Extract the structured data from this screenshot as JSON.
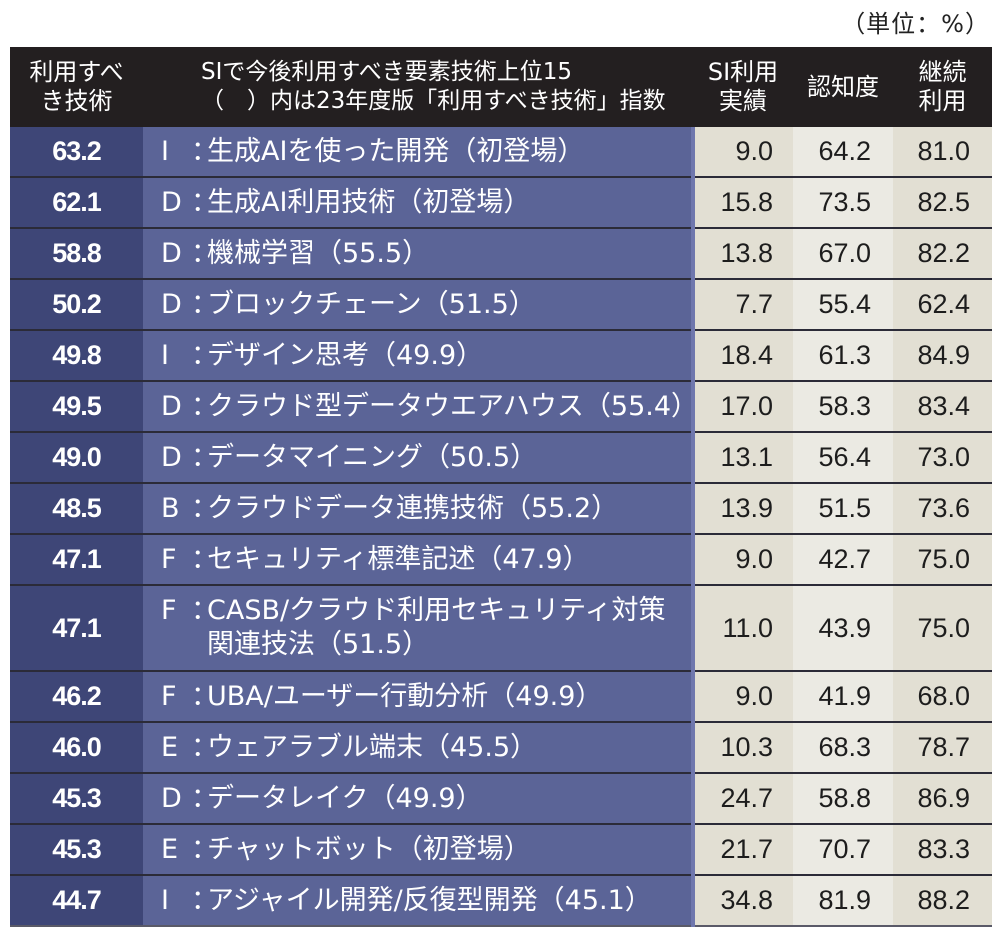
{
  "unit_label": "（単位：%）",
  "header": {
    "score_line1": "利用すべ",
    "score_line2": "き技術",
    "name_line1": "SIで今後利用すべき要素技術上位15",
    "name_line2": "（　）内は23年度版「利用すべき技術」指数",
    "si_line1": "SI利用",
    "si_line2": "実績",
    "recognition": "認知度",
    "continue_line1": "継続",
    "continue_line2": "利用"
  },
  "colors": {
    "header_bg": "#231f20",
    "score_bg": "#3e4677",
    "name_bg": "#5b6497",
    "num_bg_a": "#e2dfd3",
    "num_bg_b": "#ebeae3"
  },
  "rows": [
    {
      "score": "63.2",
      "cat": "I",
      "name": "生成AIを使った開発（初登場）",
      "si": "9.0",
      "recognition": "64.2",
      "continue": "81.0"
    },
    {
      "score": "62.1",
      "cat": "D",
      "name": "生成AI利用技術（初登場）",
      "si": "15.8",
      "recognition": "73.5",
      "continue": "82.5"
    },
    {
      "score": "58.8",
      "cat": "D",
      "name": "機械学習（55.5）",
      "si": "13.8",
      "recognition": "67.0",
      "continue": "82.2"
    },
    {
      "score": "50.2",
      "cat": "D",
      "name": "ブロックチェーン（51.5）",
      "si": "7.7",
      "recognition": "55.4",
      "continue": "62.4"
    },
    {
      "score": "49.8",
      "cat": "I",
      "name": "デザイン思考（49.9）",
      "si": "18.4",
      "recognition": "61.3",
      "continue": "84.9"
    },
    {
      "score": "49.5",
      "cat": "D",
      "name": "クラウド型データウエアハウス（55.4）",
      "si": "17.0",
      "recognition": "58.3",
      "continue": "83.4"
    },
    {
      "score": "49.0",
      "cat": "D",
      "name": "データマイニング（50.5）",
      "si": "13.1",
      "recognition": "56.4",
      "continue": "73.0"
    },
    {
      "score": "48.5",
      "cat": "B",
      "name": "クラウドデータ連携技術（55.2）",
      "si": "13.9",
      "recognition": "51.5",
      "continue": "73.6"
    },
    {
      "score": "47.1",
      "cat": "F",
      "name": "セキュリティ標準記述（47.9）",
      "si": "9.0",
      "recognition": "42.7",
      "continue": "75.0"
    },
    {
      "score": "47.1",
      "cat": "F",
      "name": "CASB/クラウド利用セキュリティ対策関連技法（51.5）",
      "si": "11.0",
      "recognition": "43.9",
      "continue": "75.0"
    },
    {
      "score": "46.2",
      "cat": "F",
      "name": "UBA/ユーザー行動分析（49.9）",
      "si": "9.0",
      "recognition": "41.9",
      "continue": "68.0"
    },
    {
      "score": "46.0",
      "cat": "E",
      "name": "ウェアラブル端末（45.5）",
      "si": "10.3",
      "recognition": "68.3",
      "continue": "78.7"
    },
    {
      "score": "45.3",
      "cat": "D",
      "name": "データレイク（49.9）",
      "si": "24.7",
      "recognition": "58.8",
      "continue": "86.9"
    },
    {
      "score": "45.3",
      "cat": "E",
      "name": "チャットボット（初登場）",
      "si": "21.7",
      "recognition": "70.7",
      "continue": "83.3"
    },
    {
      "score": "44.7",
      "cat": "I",
      "name": "アジャイル開発/反復型開発（45.1）",
      "si": "34.8",
      "recognition": "81.9",
      "continue": "88.2"
    }
  ],
  "separator": "："
}
